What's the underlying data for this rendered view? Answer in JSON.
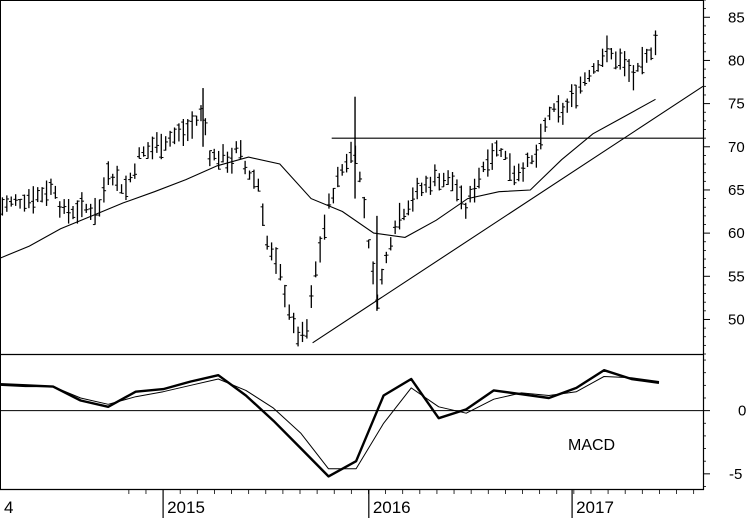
{
  "chart_data": [
    {
      "type": "ohlc",
      "panel": "price",
      "x_ticks": [
        "4",
        "2015",
        "2016",
        "2017"
      ],
      "y_ticks": [
        50,
        55,
        60,
        65,
        70,
        75,
        80,
        85
      ],
      "ylim": [
        46,
        87
      ],
      "axis_side": "right",
      "moving_average": {
        "values": [
          57,
          58.5,
          60.5,
          62,
          63.5,
          64.8,
          66.2,
          67.8,
          68.8,
          68,
          64,
          62.5,
          60,
          59.5,
          61.5,
          64,
          64.8,
          65,
          68.5,
          71.5,
          73.5,
          75.5
        ]
      },
      "horizontal_line": {
        "value": 71,
        "from": "2015-10"
      },
      "trendline": {
        "from": [
          "2015-09",
          47.5
        ],
        "to": [
          "2017-07",
          76.5
        ]
      }
    },
    {
      "type": "line",
      "panel": "macd",
      "title": "MACD",
      "y_ticks": [
        -5,
        0
      ],
      "ylim": [
        -6.2,
        4.4
      ],
      "zero_line": true,
      "series": [
        {
          "values": [
            2.1,
            2.0,
            1.9,
            0.8,
            0.3,
            1.5,
            1.7,
            2.3,
            2.8,
            1.2,
            -0.8,
            -3.0,
            -5.2,
            -4.0,
            1.2,
            2.5,
            -0.6,
            0.1,
            1.6,
            1.3,
            1.0,
            1.8,
            3.2,
            2.5,
            2.2
          ]
        },
        {
          "values": [
            2.0,
            1.9,
            1.9,
            1.0,
            0.5,
            1.1,
            1.5,
            2.0,
            2.5,
            1.6,
            0.2,
            -1.8,
            -4.6,
            -4.6,
            -1.0,
            1.8,
            0.3,
            -0.2,
            0.9,
            1.4,
            1.2,
            1.5,
            2.7,
            2.6,
            2.3
          ]
        }
      ]
    }
  ]
}
